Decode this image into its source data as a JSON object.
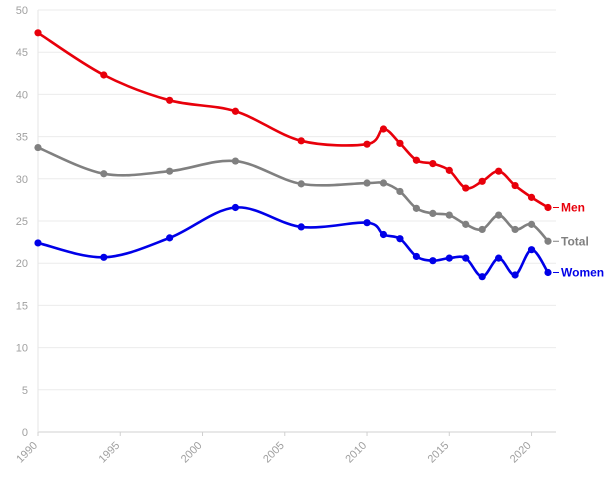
{
  "chart_data": {
    "type": "line",
    "title": "",
    "xlabel": "",
    "ylabel": "",
    "xlim": [
      1990,
      2021
    ],
    "ylim": [
      0,
      50
    ],
    "x_ticks": [
      "1990",
      "1995",
      "2000",
      "2005",
      "2010",
      "2015",
      "2020"
    ],
    "y_ticks": [
      "0",
      "5",
      "10",
      "15",
      "20",
      "25",
      "30",
      "35",
      "40",
      "45",
      "50"
    ],
    "grid": true,
    "x": [
      1990,
      1994,
      1998,
      2002,
      2006,
      2010,
      2011,
      2012,
      2013,
      2014,
      2015,
      2016,
      2017,
      2018,
      2019,
      2020,
      2021
    ],
    "series": [
      {
        "name": "Men",
        "color": "#e8000b",
        "values": [
          47.3,
          42.3,
          39.3,
          38.0,
          34.5,
          34.1,
          35.9,
          34.2,
          32.2,
          31.8,
          31.0,
          28.9,
          29.7,
          30.9,
          29.2,
          27.8,
          26.6
        ]
      },
      {
        "name": "Total",
        "color": "#808080",
        "values": [
          33.7,
          30.6,
          30.9,
          32.1,
          29.4,
          29.5,
          29.5,
          28.5,
          26.5,
          25.9,
          25.7,
          24.6,
          24.0,
          25.7,
          24.0,
          24.6,
          22.6
        ]
      },
      {
        "name": "Women",
        "color": "#0000e8",
        "values": [
          22.4,
          20.7,
          23.0,
          26.6,
          24.3,
          24.8,
          23.4,
          22.9,
          20.8,
          20.3,
          20.6,
          20.6,
          18.4,
          20.6,
          18.6,
          21.6,
          18.9
        ]
      }
    ]
  }
}
